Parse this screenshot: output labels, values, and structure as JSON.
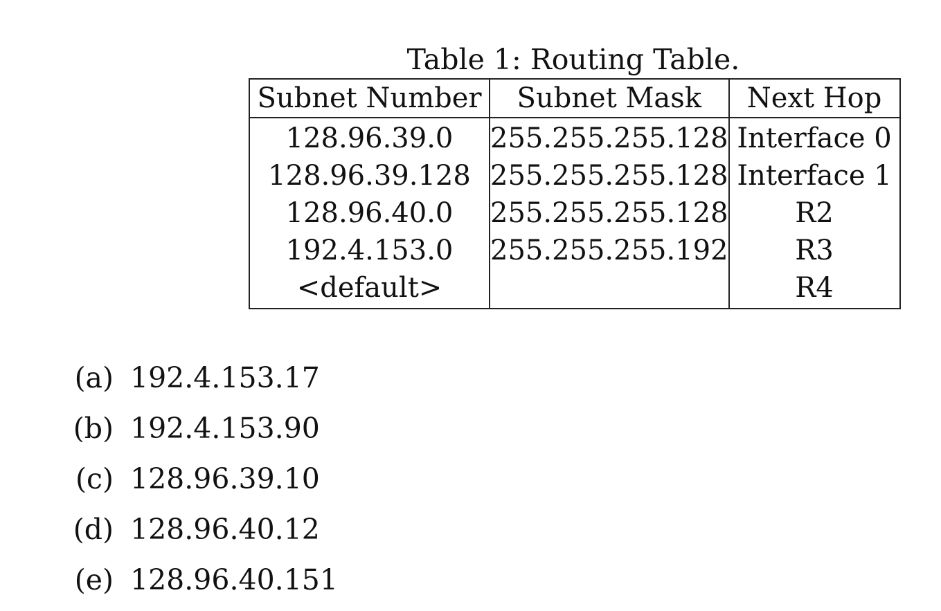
{
  "table": {
    "caption": "Table 1: Routing Table.",
    "headers": [
      "Subnet Number",
      "Subnet Mask",
      "Next Hop"
    ],
    "rows": [
      [
        "128.96.39.0",
        "255.255.255.128",
        "Interface 0"
      ],
      [
        "128.96.39.128",
        "255.255.255.128",
        "Interface 1"
      ],
      [
        "128.96.40.0",
        "255.255.255.128",
        "R2"
      ],
      [
        "192.4.153.0",
        "255.255.255.192",
        "R3"
      ],
      [
        "<default>",
        "",
        "R4"
      ]
    ]
  },
  "questions": [
    {
      "label": "(a)",
      "address": "192.4.153.17"
    },
    {
      "label": "(b)",
      "address": "192.4.153.90"
    },
    {
      "label": "(c)",
      "address": "128.96.39.10"
    },
    {
      "label": "(d)",
      "address": "128.96.40.12"
    },
    {
      "label": "(e)",
      "address": "128.96.40.151"
    }
  ]
}
